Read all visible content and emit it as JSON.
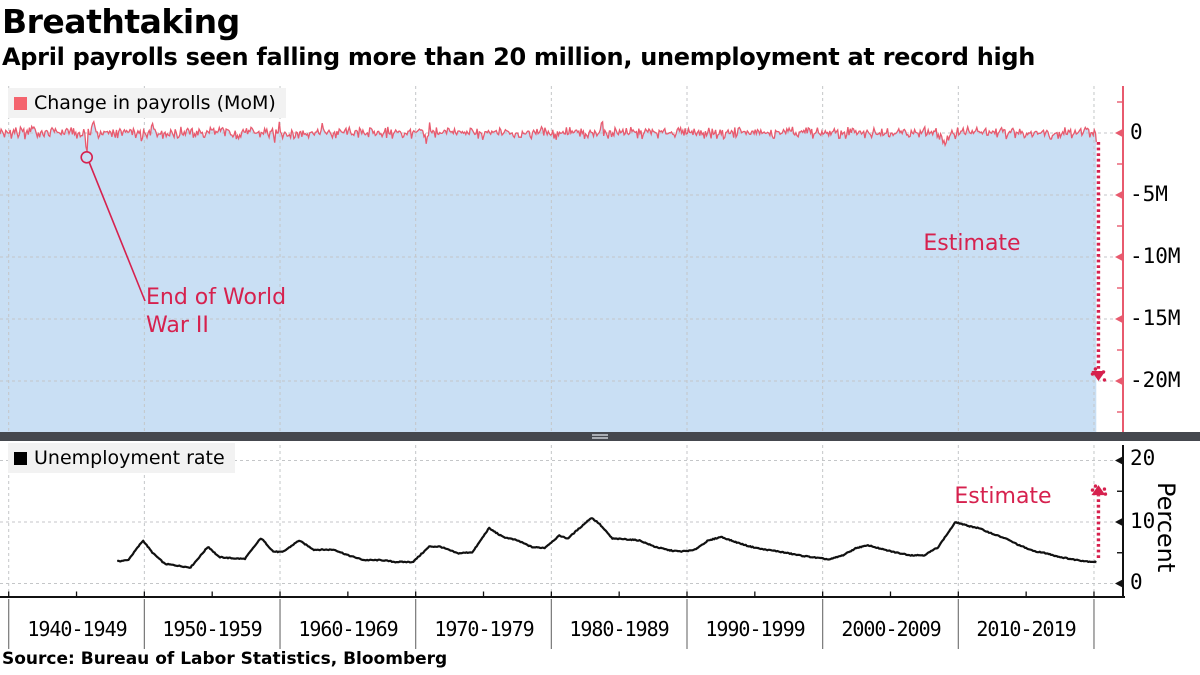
{
  "header": {
    "title": "Breathtaking",
    "subtitle": "April payrolls seen falling more than 20 million, unemployment at record high"
  },
  "source": "Source: Bureau of Labor Statistics, Bloomberg",
  "x_axis": {
    "labels": [
      "1940-1949",
      "1950-1959",
      "1960-1969",
      "1970-1979",
      "1980-1989",
      "1990-1999",
      "2000-2009",
      "2010-2019"
    ],
    "decade_boundaries_years": [
      1940,
      1950,
      1960,
      1970,
      1980,
      1990,
      2000,
      2010,
      2020
    ]
  },
  "colors": {
    "payroll_line": "#e85a6e",
    "payroll_legend_swatch": "#f4646e",
    "payroll_fill": "#c9dff4",
    "crimson_accent": "#d6214e",
    "unemployment_line": "#111111",
    "gridline": "#c4c6c8",
    "divider": "#45484e",
    "legend_bg": "#f2f2f2",
    "text": "#000000"
  },
  "chart_data": [
    {
      "type": "area",
      "legend": "Change in payrolls (MoM)",
      "x_range": [
        1939.36,
        2020.17
      ],
      "ylim_millions": [
        -24.2,
        3.6
      ],
      "y_tick_labels": [
        "0",
        "-5M",
        "-10M",
        "-15M",
        "-20M"
      ],
      "y_tick_values_millions": [
        0,
        -5,
        -10,
        -15,
        -20
      ],
      "grid": true,
      "legend_position": "top-left",
      "axis_side": "right",
      "typical_monthly_change_millions": [
        -0.3,
        0.3
      ],
      "event_spikes_millions": [
        [
          1941.8,
          0.55,
          0.12
        ],
        [
          1943.3,
          0.45,
          0.1
        ],
        [
          1945.0,
          -0.55,
          0.06
        ],
        [
          1945.75,
          -1.95,
          0.05
        ],
        [
          1946.2,
          0.85,
          0.08
        ],
        [
          1949.8,
          -0.7,
          0.07
        ],
        [
          1950.6,
          0.9,
          0.08
        ],
        [
          1952.5,
          -0.65,
          0.05
        ],
        [
          1952.72,
          0.6,
          0.05
        ],
        [
          1956.55,
          -0.62,
          0.05
        ],
        [
          1959.6,
          -0.7,
          0.06
        ],
        [
          1959.95,
          0.8,
          0.05
        ],
        [
          1963.1,
          0.45,
          0.05
        ],
        [
          1970.8,
          -1.05,
          0.06
        ],
        [
          1971.02,
          0.85,
          0.05
        ],
        [
          1974.95,
          -0.55,
          0.1
        ],
        [
          1980.35,
          -0.45,
          0.08
        ],
        [
          1982.6,
          -0.35,
          0.12
        ],
        [
          1983.72,
          1.05,
          0.06
        ],
        [
          1996.1,
          -0.4,
          0.05
        ],
        [
          2009.1,
          -0.72,
          0.25
        ],
        [
          2010.35,
          0.5,
          0.05
        ],
        [
          2020.2,
          -0.75,
          0.045
        ]
      ],
      "annotation": {
        "text": "End of World\nWar II",
        "point_year": 1945.75,
        "point_value_millions": -1.96
      },
      "estimate": {
        "label": "Estimate",
        "x_year": 2020.33,
        "value_millions": -20.5,
        "style": "dotted-arrow-down"
      }
    },
    {
      "type": "line",
      "legend": "Unemployment rate",
      "ylabel": "Percent",
      "x_range": [
        1948.0,
        2020.17
      ],
      "ylim_percent": [
        -2.2,
        22
      ],
      "y_tick_labels": [
        "20",
        "10",
        "0"
      ],
      "y_tick_values_percent": [
        20,
        10,
        0
      ],
      "grid": true,
      "legend_position": "top-left",
      "axis_side": "right",
      "anchors_year_rate": [
        [
          1948.0,
          3.6
        ],
        [
          1948.8,
          3.8
        ],
        [
          1949.9,
          7.0
        ],
        [
          1950.6,
          5.0
        ],
        [
          1951.5,
          3.2
        ],
        [
          1953.4,
          2.6
        ],
        [
          1954.7,
          6.0
        ],
        [
          1955.5,
          4.3
        ],
        [
          1956.5,
          4.1
        ],
        [
          1957.4,
          4.0
        ],
        [
          1958.6,
          7.4
        ],
        [
          1959.5,
          5.2
        ],
        [
          1960.2,
          5.1
        ],
        [
          1961.4,
          7.0
        ],
        [
          1962.5,
          5.5
        ],
        [
          1964.0,
          5.5
        ],
        [
          1965.0,
          4.6
        ],
        [
          1966.2,
          3.8
        ],
        [
          1967.5,
          3.8
        ],
        [
          1968.5,
          3.5
        ],
        [
          1969.8,
          3.5
        ],
        [
          1971.0,
          6.0
        ],
        [
          1971.8,
          6.0
        ],
        [
          1973.1,
          4.9
        ],
        [
          1974.2,
          5.1
        ],
        [
          1975.4,
          9.0
        ],
        [
          1976.4,
          7.6
        ],
        [
          1977.5,
          7.0
        ],
        [
          1978.6,
          5.9
        ],
        [
          1979.5,
          5.8
        ],
        [
          1980.6,
          7.8
        ],
        [
          1981.2,
          7.3
        ],
        [
          1982.95,
          10.7
        ],
        [
          1983.5,
          9.8
        ],
        [
          1984.5,
          7.3
        ],
        [
          1985.5,
          7.2
        ],
        [
          1986.5,
          7.0
        ],
        [
          1987.6,
          6.0
        ],
        [
          1988.7,
          5.4
        ],
        [
          1989.5,
          5.2
        ],
        [
          1990.5,
          5.4
        ],
        [
          1991.5,
          6.9
        ],
        [
          1992.5,
          7.6
        ],
        [
          1993.5,
          6.8
        ],
        [
          1994.5,
          6.1
        ],
        [
          1995.5,
          5.6
        ],
        [
          1996.5,
          5.3
        ],
        [
          1997.5,
          4.9
        ],
        [
          1998.5,
          4.5
        ],
        [
          1999.5,
          4.2
        ],
        [
          2000.5,
          3.9
        ],
        [
          2001.5,
          4.6
        ],
        [
          2002.5,
          5.8
        ],
        [
          2003.4,
          6.2
        ],
        [
          2004.5,
          5.5
        ],
        [
          2005.5,
          5.0
        ],
        [
          2006.5,
          4.6
        ],
        [
          2007.5,
          4.6
        ],
        [
          2008.5,
          5.9
        ],
        [
          2009.8,
          10.0
        ],
        [
          2010.5,
          9.5
        ],
        [
          2011.5,
          9.0
        ],
        [
          2012.5,
          8.1
        ],
        [
          2013.5,
          7.3
        ],
        [
          2014.5,
          6.2
        ],
        [
          2015.5,
          5.3
        ],
        [
          2016.5,
          4.9
        ],
        [
          2017.5,
          4.3
        ],
        [
          2018.5,
          3.9
        ],
        [
          2019.5,
          3.6
        ],
        [
          2020.17,
          3.5
        ]
      ],
      "estimate": {
        "label": "Estimate",
        "x_year": 2020.33,
        "value_percent": 16.0,
        "style": "dotted-arrow-up"
      }
    }
  ]
}
